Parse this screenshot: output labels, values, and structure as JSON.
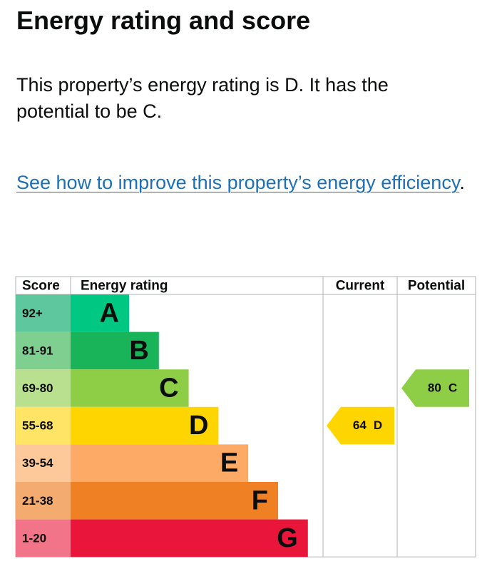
{
  "heading": "Energy rating and score",
  "summary": "This property’s energy rating is D. It has the potential to be C.",
  "link": {
    "text": "See how to improve this property’s energy efficiency",
    "suffix": "."
  },
  "table": {
    "headers": [
      "Score",
      "Energy rating",
      "Current",
      "Potential"
    ],
    "rows": [
      {
        "score": "92+",
        "letter": "A",
        "color": "#00c781",
        "score_color": "#5fc79e"
      },
      {
        "score": "81-91",
        "letter": "B",
        "color": "#19b459",
        "score_color": "#7fcf91"
      },
      {
        "score": "69-80",
        "letter": "C",
        "color": "#8dce46",
        "score_color": "#b9e08f"
      },
      {
        "score": "55-68",
        "letter": "D",
        "color": "#ffd500",
        "score_color": "#ffe466"
      },
      {
        "score": "39-54",
        "letter": "E",
        "color": "#fcaa65",
        "score_color": "#fdc89a"
      },
      {
        "score": "21-38",
        "letter": "F",
        "color": "#ef8023",
        "score_color": "#f4ab6f"
      },
      {
        "score": "1-20",
        "letter": "G",
        "color": "#e9153b",
        "score_color": "#f27488"
      }
    ],
    "current": {
      "score": 64,
      "letter": "D"
    },
    "potential": {
      "score": 80,
      "letter": "C"
    }
  }
}
